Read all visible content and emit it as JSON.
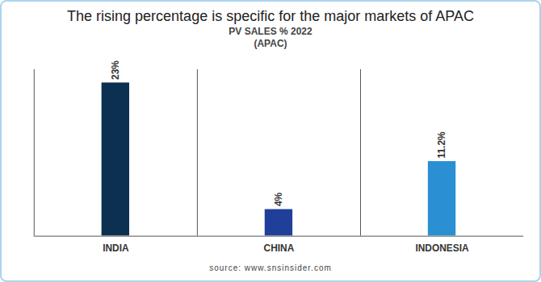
{
  "chart_data": {
    "type": "bar",
    "title": "The rising percentage is specific for the major markets of APAC",
    "subtitle": [
      "PV SALES % 2022",
      "(APAC)"
    ],
    "source": "source: www.snsinsider.com",
    "categories": [
      "INDIA",
      "CHINA",
      "INDONESIA"
    ],
    "values": [
      23,
      4,
      11.2
    ],
    "value_labels": [
      "23%",
      "4%",
      "11.2%"
    ],
    "colors": [
      "#0c3050",
      "#1f3f9a",
      "#2b8fd4"
    ],
    "ylim": [
      0,
      25
    ],
    "grid": false,
    "data_labels": true,
    "tick_labels": "x"
  }
}
